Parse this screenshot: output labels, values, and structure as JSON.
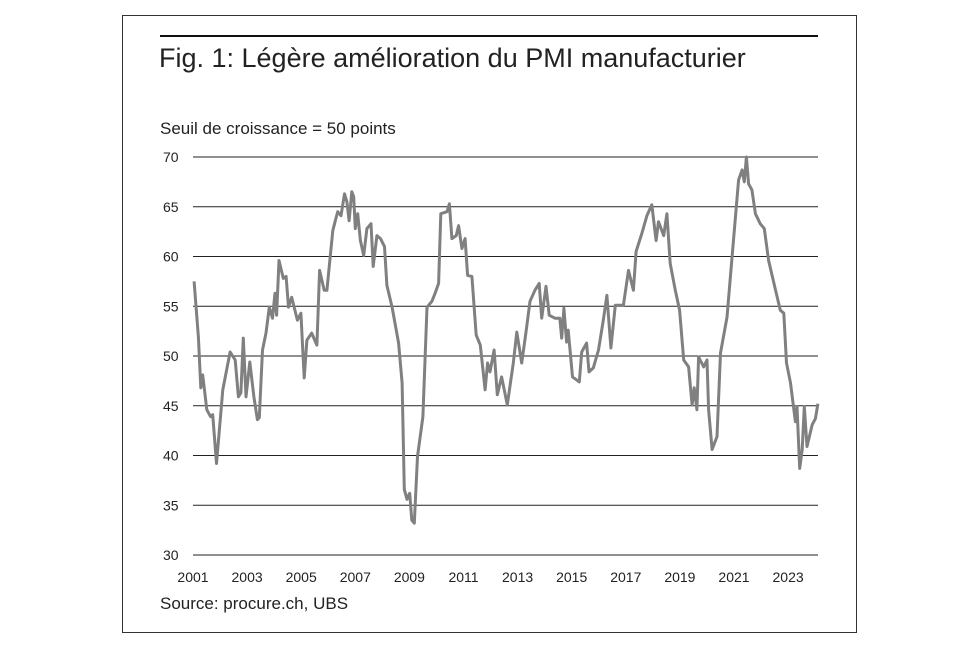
{
  "chart_data": {
    "type": "line",
    "title": "Fig. 1: Légère amélioration du PMI manufacturier",
    "subtitle": "Seuil de croissance = 50 points",
    "source": "Source: procure.ch, UBS",
    "xlabel": "",
    "ylabel": "",
    "xlim": [
      2001,
      2024.1
    ],
    "ylim": [
      30,
      70
    ],
    "yticks": [
      30,
      35,
      40,
      45,
      50,
      55,
      60,
      65,
      70
    ],
    "xticks": [
      "2001",
      "2003",
      "2005",
      "2007",
      "2009",
      "2011",
      "2013",
      "2015",
      "2017",
      "2019",
      "2021",
      "2023"
    ],
    "grid": true,
    "color": "#808080",
    "series": [
      {
        "name": "PMI manufacturier",
        "points": [
          [
            2001.04,
            57.5
          ],
          [
            2001.2,
            51.9
          ],
          [
            2001.29,
            46.8
          ],
          [
            2001.36,
            48.1
          ],
          [
            2001.51,
            44.6
          ],
          [
            2001.65,
            43.9
          ],
          [
            2001.73,
            44.1
          ],
          [
            2001.87,
            39.2
          ],
          [
            2002.1,
            46.6
          ],
          [
            2002.37,
            50.4
          ],
          [
            2002.56,
            49.6
          ],
          [
            2002.68,
            45.9
          ],
          [
            2002.77,
            46.3
          ],
          [
            2002.86,
            51.8
          ],
          [
            2002.96,
            45.9
          ],
          [
            2003.1,
            49.4
          ],
          [
            2003.25,
            45.9
          ],
          [
            2003.38,
            43.6
          ],
          [
            2003.45,
            43.8
          ],
          [
            2003.57,
            50.6
          ],
          [
            2003.7,
            52.3
          ],
          [
            2003.82,
            54.9
          ],
          [
            2003.94,
            53.8
          ],
          [
            2004.03,
            56.3
          ],
          [
            2004.09,
            54.1
          ],
          [
            2004.18,
            59.6
          ],
          [
            2004.34,
            57.8
          ],
          [
            2004.44,
            58
          ],
          [
            2004.53,
            54.9
          ],
          [
            2004.65,
            55.9
          ],
          [
            2004.86,
            53.6
          ],
          [
            2004.99,
            54.3
          ],
          [
            2005.11,
            47.8
          ],
          [
            2005.21,
            51.6
          ],
          [
            2005.39,
            52.3
          ],
          [
            2005.58,
            51.1
          ],
          [
            2005.68,
            58.6
          ],
          [
            2005.85,
            56.6
          ],
          [
            2005.95,
            56.6
          ],
          [
            2006.17,
            62.6
          ],
          [
            2006.26,
            63.6
          ],
          [
            2006.35,
            64.5
          ],
          [
            2006.47,
            64.1
          ],
          [
            2006.6,
            66.3
          ],
          [
            2006.69,
            65.5
          ],
          [
            2006.77,
            63.6
          ],
          [
            2006.87,
            66.5
          ],
          [
            2006.94,
            66
          ],
          [
            2007.0,
            62.8
          ],
          [
            2007.09,
            64.3
          ],
          [
            2007.19,
            61.6
          ],
          [
            2007.31,
            60.1
          ],
          [
            2007.43,
            62.8
          ],
          [
            2007.58,
            63.3
          ],
          [
            2007.66,
            59
          ],
          [
            2007.8,
            62.1
          ],
          [
            2007.93,
            61.8
          ],
          [
            2008.08,
            61
          ],
          [
            2008.17,
            57.1
          ],
          [
            2008.36,
            54.9
          ],
          [
            2008.6,
            51.3
          ],
          [
            2008.73,
            47.3
          ],
          [
            2008.81,
            36.6
          ],
          [
            2008.91,
            35.6
          ],
          [
            2009.01,
            36.2
          ],
          [
            2009.09,
            33.5
          ],
          [
            2009.18,
            33.2
          ],
          [
            2009.3,
            39.9
          ],
          [
            2009.5,
            43.9
          ],
          [
            2009.65,
            54.9
          ],
          [
            2009.83,
            55.5
          ],
          [
            2009.95,
            56.3
          ],
          [
            2010.08,
            57.3
          ],
          [
            2010.16,
            64.3
          ],
          [
            2010.39,
            64.5
          ],
          [
            2010.48,
            65.3
          ],
          [
            2010.57,
            61.8
          ],
          [
            2010.73,
            62.1
          ],
          [
            2010.82,
            63.1
          ],
          [
            2010.94,
            60.8
          ],
          [
            2011.06,
            61.8
          ],
          [
            2011.15,
            58.1
          ],
          [
            2011.31,
            58
          ],
          [
            2011.47,
            52.1
          ],
          [
            2011.62,
            51.1
          ],
          [
            2011.8,
            46.6
          ],
          [
            2011.89,
            49.3
          ],
          [
            2011.98,
            48.4
          ],
          [
            2012.13,
            50.6
          ],
          [
            2012.25,
            46.1
          ],
          [
            2012.41,
            47.9
          ],
          [
            2012.62,
            45.1
          ],
          [
            2012.84,
            49.3
          ],
          [
            2012.97,
            52.4
          ],
          [
            2013.15,
            49.3
          ],
          [
            2013.31,
            52.4
          ],
          [
            2013.46,
            55.5
          ],
          [
            2013.64,
            56.6
          ],
          [
            2013.8,
            57.3
          ],
          [
            2013.89,
            53.8
          ],
          [
            2014.05,
            57
          ],
          [
            2014.17,
            54.1
          ],
          [
            2014.38,
            53.8
          ],
          [
            2014.56,
            53.8
          ],
          [
            2014.63,
            51.8
          ],
          [
            2014.71,
            54.8
          ],
          [
            2014.81,
            51.4
          ],
          [
            2014.87,
            52.6
          ],
          [
            2015.03,
            47.9
          ],
          [
            2015.28,
            47.4
          ],
          [
            2015.37,
            50.4
          ],
          [
            2015.55,
            51.3
          ],
          [
            2015.64,
            48.4
          ],
          [
            2015.8,
            48.8
          ],
          [
            2015.99,
            50.6
          ],
          [
            2016.17,
            53.6
          ],
          [
            2016.3,
            56.1
          ],
          [
            2016.45,
            50.8
          ],
          [
            2016.61,
            55.1
          ],
          [
            2016.91,
            55.1
          ],
          [
            2017.1,
            58.6
          ],
          [
            2017.28,
            56.6
          ],
          [
            2017.38,
            60.5
          ],
          [
            2017.59,
            62.3
          ],
          [
            2017.78,
            64.1
          ],
          [
            2017.96,
            65.2
          ],
          [
            2018.12,
            61.6
          ],
          [
            2018.21,
            63.5
          ],
          [
            2018.4,
            62.1
          ],
          [
            2018.52,
            64.3
          ],
          [
            2018.64,
            59.3
          ],
          [
            2018.83,
            56.6
          ],
          [
            2018.99,
            54.6
          ],
          [
            2019.14,
            49.6
          ],
          [
            2019.32,
            48.9
          ],
          [
            2019.45,
            45.1
          ],
          [
            2019.53,
            46.8
          ],
          [
            2019.63,
            44.6
          ],
          [
            2019.69,
            49.9
          ],
          [
            2019.88,
            48.9
          ],
          [
            2020.0,
            49.6
          ],
          [
            2020.06,
            44.6
          ],
          [
            2020.19,
            40.6
          ],
          [
            2020.37,
            41.9
          ],
          [
            2020.5,
            50.3
          ],
          [
            2020.74,
            53.9
          ],
          [
            2020.93,
            60
          ],
          [
            2021.17,
            67.7
          ],
          [
            2021.3,
            68.7
          ],
          [
            2021.38,
            67.5
          ],
          [
            2021.46,
            70
          ],
          [
            2021.54,
            67.3
          ],
          [
            2021.66,
            66.7
          ],
          [
            2021.79,
            64.3
          ],
          [
            2021.97,
            63.3
          ],
          [
            2022.12,
            62.8
          ],
          [
            2022.28,
            59.6
          ],
          [
            2022.52,
            56.8
          ],
          [
            2022.71,
            54.6
          ],
          [
            2022.84,
            54.3
          ],
          [
            2022.94,
            49.3
          ],
          [
            2023.09,
            47.3
          ],
          [
            2023.27,
            43.4
          ],
          [
            2023.33,
            44.9
          ],
          [
            2023.43,
            38.7
          ],
          [
            2023.52,
            40.6
          ],
          [
            2023.6,
            44.9
          ],
          [
            2023.7,
            40.9
          ],
          [
            2023.89,
            43.1
          ],
          [
            2024.01,
            43.7
          ],
          [
            2024.1,
            45.2
          ]
        ]
      }
    ]
  }
}
